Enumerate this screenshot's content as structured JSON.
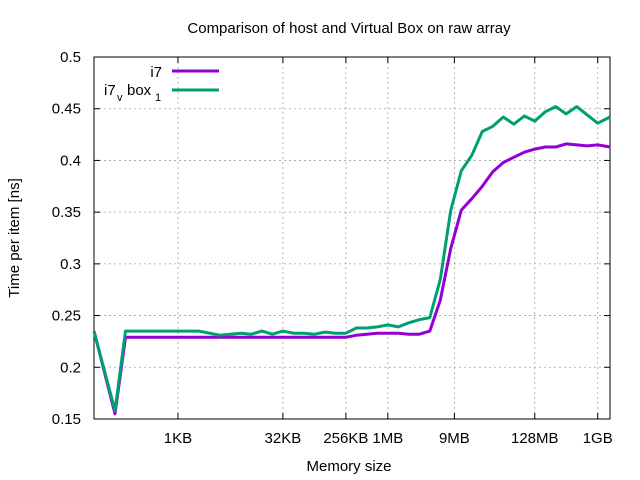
{
  "chart_data": {
    "type": "line",
    "title": "Comparison of host and Virtual Box on raw array",
    "xlabel": "Memory size",
    "ylabel": "Time per item [ns]",
    "x_scale": "log2",
    "x_unit": "bytes",
    "xlim": [
      64,
      1610612736
    ],
    "ylim": [
      0.15,
      0.5
    ],
    "grid": true,
    "legend_position": "top-left",
    "x_ticks": [
      {
        "value": 1024,
        "label": "1KB"
      },
      {
        "value": 32768,
        "label": "32KB"
      },
      {
        "value": 262144,
        "label": "256KB"
      },
      {
        "value": 1048576,
        "label": "1MB"
      },
      {
        "value": 9437184,
        "label": "9MB"
      },
      {
        "value": 134217728,
        "label": "128MB"
      },
      {
        "value": 1073741824,
        "label": "1GB"
      }
    ],
    "y_ticks": [
      {
        "value": 0.15,
        "label": "0.15"
      },
      {
        "value": 0.2,
        "label": "0.2"
      },
      {
        "value": 0.25,
        "label": "0.25"
      },
      {
        "value": 0.3,
        "label": "0.3"
      },
      {
        "value": 0.35,
        "label": "0.35"
      },
      {
        "value": 0.4,
        "label": "0.4"
      },
      {
        "value": 0.45,
        "label": "0.45"
      },
      {
        "value": 0.5,
        "label": "0.5"
      }
    ],
    "series": [
      {
        "name": "i7",
        "name_sub": "",
        "color": "#9400d3",
        "points": [
          [
            64,
            0.235
          ],
          [
            128,
            0.155
          ],
          [
            181,
            0.229
          ],
          [
            256,
            0.229
          ],
          [
            512,
            0.229
          ],
          [
            1024,
            0.229
          ],
          [
            2048,
            0.229
          ],
          [
            4096,
            0.229
          ],
          [
            8192,
            0.229
          ],
          [
            16384,
            0.229
          ],
          [
            32768,
            0.229
          ],
          [
            65536,
            0.229
          ],
          [
            131072,
            0.229
          ],
          [
            262144,
            0.229
          ],
          [
            370727,
            0.231
          ],
          [
            524288,
            0.232
          ],
          [
            741455,
            0.233
          ],
          [
            1048576,
            0.233
          ],
          [
            1482910,
            0.233
          ],
          [
            2097152,
            0.232
          ],
          [
            2965821,
            0.232
          ],
          [
            4194304,
            0.235
          ],
          [
            5931642,
            0.265
          ],
          [
            8388608,
            0.315
          ],
          [
            11863283,
            0.352
          ],
          [
            16777216,
            0.363
          ],
          [
            23726566,
            0.375
          ],
          [
            33554432,
            0.389
          ],
          [
            47453133,
            0.398
          ],
          [
            67108864,
            0.403
          ],
          [
            94906266,
            0.408
          ],
          [
            134217728,
            0.411
          ],
          [
            189812531,
            0.413
          ],
          [
            268435456,
            0.413
          ],
          [
            379625062,
            0.416
          ],
          [
            536870912,
            0.415
          ],
          [
            759250125,
            0.414
          ],
          [
            1073741824,
            0.415
          ],
          [
            1610612736,
            0.413
          ]
        ]
      },
      {
        "name": "i7",
        "name_sub": "v",
        "name_rest": "box",
        "name_sub2": "1",
        "color": "#009e73",
        "points": [
          [
            64,
            0.235
          ],
          [
            128,
            0.158
          ],
          [
            181,
            0.235
          ],
          [
            256,
            0.235
          ],
          [
            512,
            0.235
          ],
          [
            1024,
            0.235
          ],
          [
            2048,
            0.235
          ],
          [
            4096,
            0.231
          ],
          [
            8192,
            0.233
          ],
          [
            11585,
            0.232
          ],
          [
            16384,
            0.235
          ],
          [
            23170,
            0.232
          ],
          [
            32768,
            0.235
          ],
          [
            46341,
            0.233
          ],
          [
            65536,
            0.233
          ],
          [
            92682,
            0.232
          ],
          [
            131072,
            0.234
          ],
          [
            185364,
            0.233
          ],
          [
            262144,
            0.233
          ],
          [
            370727,
            0.238
          ],
          [
            524288,
            0.238
          ],
          [
            741455,
            0.239
          ],
          [
            1048576,
            0.241
          ],
          [
            1482910,
            0.239
          ],
          [
            2097152,
            0.243
          ],
          [
            2965821,
            0.246
          ],
          [
            4194304,
            0.248
          ],
          [
            5931642,
            0.285
          ],
          [
            8388608,
            0.352
          ],
          [
            11863283,
            0.39
          ],
          [
            16777216,
            0.405
          ],
          [
            23726566,
            0.428
          ],
          [
            33554432,
            0.433
          ],
          [
            47453133,
            0.442
          ],
          [
            67108864,
            0.435
          ],
          [
            94906266,
            0.443
          ],
          [
            134217728,
            0.438
          ],
          [
            189812531,
            0.447
          ],
          [
            268435456,
            0.452
          ],
          [
            379625062,
            0.445
          ],
          [
            536870912,
            0.452
          ],
          [
            759250125,
            0.444
          ],
          [
            1073741824,
            0.436
          ],
          [
            1610612736,
            0.442
          ]
        ]
      }
    ]
  }
}
